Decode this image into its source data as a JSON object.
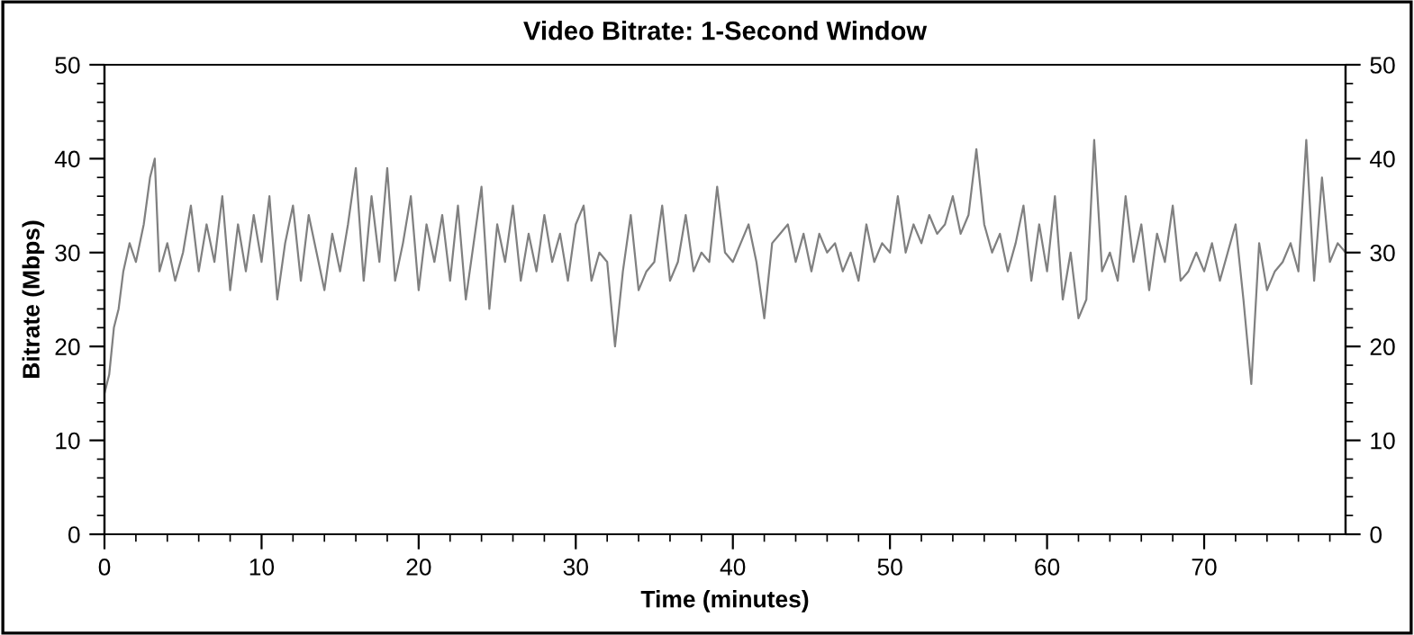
{
  "chart_data": {
    "type": "line",
    "title": "Video Bitrate: 1-Second Window",
    "xlabel": "Time (minutes)",
    "ylabel": "Bitrate (Mbps)",
    "x": [
      0,
      0.3,
      0.6,
      0.9,
      1.2,
      1.6,
      2,
      2.5,
      2.9,
      3.2,
      3.5,
      4,
      4.5,
      5,
      5.5,
      6,
      6.5,
      7,
      7.5,
      8,
      8.5,
      9,
      9.5,
      10,
      10.5,
      11,
      11.5,
      12,
      12.5,
      13,
      13.5,
      14,
      14.5,
      15,
      15.5,
      16,
      16.5,
      17,
      17.5,
      18,
      18.5,
      19,
      19.5,
      20,
      20.5,
      21,
      21.5,
      22,
      22.5,
      23,
      23.5,
      24,
      24.5,
      25,
      25.5,
      26,
      26.5,
      27,
      27.5,
      28,
      28.5,
      29,
      29.5,
      30,
      30.5,
      31,
      31.5,
      32,
      32.5,
      33,
      33.5,
      34,
      34.5,
      35,
      35.5,
      36,
      36.5,
      37,
      37.5,
      38,
      38.5,
      39,
      39.5,
      40,
      40.5,
      41,
      41.5,
      42,
      42.5,
      43,
      43.5,
      44,
      44.5,
      45,
      45.5,
      46,
      46.5,
      47,
      47.5,
      48,
      48.5,
      49,
      49.5,
      50,
      50.5,
      51,
      51.5,
      52,
      52.5,
      53,
      53.5,
      54,
      54.5,
      55,
      55.5,
      56,
      56.5,
      57,
      57.5,
      58,
      58.5,
      59,
      59.5,
      60,
      60.5,
      61,
      61.5,
      62,
      62.5,
      63,
      63.5,
      64,
      64.5,
      65,
      65.5,
      66,
      66.5,
      67,
      67.5,
      68,
      68.5,
      69,
      69.5,
      70,
      70.5,
      71,
      71.5,
      72,
      72.5,
      73,
      73.5,
      74,
      74.5,
      75,
      75.5,
      76,
      76.5,
      77,
      77.5,
      78,
      78.5,
      79
    ],
    "series": [
      {
        "color": "#808080",
        "values": [
          15,
          17,
          22,
          24,
          28,
          31,
          29,
          33,
          38,
          40,
          28,
          31,
          27,
          30,
          35,
          28,
          33,
          29,
          36,
          26,
          33,
          28,
          34,
          29,
          36,
          25,
          31,
          35,
          27,
          34,
          30,
          26,
          32,
          28,
          33,
          39,
          27,
          36,
          29,
          39,
          27,
          31,
          36,
          26,
          33,
          29,
          34,
          27,
          35,
          25,
          31,
          37,
          24,
          33,
          29,
          35,
          27,
          32,
          28,
          34,
          29,
          32,
          27,
          33,
          35,
          27,
          30,
          29,
          20,
          28,
          34,
          26,
          28,
          29,
          35,
          27,
          29,
          34,
          28,
          30,
          29,
          37,
          30,
          29,
          31,
          33,
          29,
          23,
          31,
          32,
          33,
          29,
          32,
          28,
          32,
          30,
          31,
          28,
          30,
          27,
          33,
          29,
          31,
          30,
          36,
          30,
          33,
          31,
          34,
          32,
          33,
          36,
          32,
          34,
          41,
          33,
          30,
          32,
          28,
          31,
          35,
          27,
          33,
          28,
          36,
          25,
          30,
          23,
          25,
          42,
          28,
          30,
          27,
          36,
          29,
          33,
          26,
          32,
          29,
          35,
          27,
          28,
          30,
          28,
          31,
          27,
          30,
          33,
          25,
          16,
          31,
          26,
          28,
          29,
          31,
          28,
          42,
          27,
          38,
          29,
          31,
          30
        ]
      }
    ],
    "xlim": [
      0,
      79
    ],
    "xticks": [
      0,
      10,
      20,
      30,
      40,
      50,
      60,
      70
    ],
    "ylim": [
      0,
      50
    ],
    "yticks": [
      0,
      10,
      20,
      30,
      40,
      50
    ],
    "y2lim": [
      0,
      50
    ],
    "y2ticks": [
      0,
      10,
      20,
      30,
      40,
      50
    ],
    "grid": false,
    "legend": false,
    "marker": "none",
    "line_style": "solid"
  }
}
